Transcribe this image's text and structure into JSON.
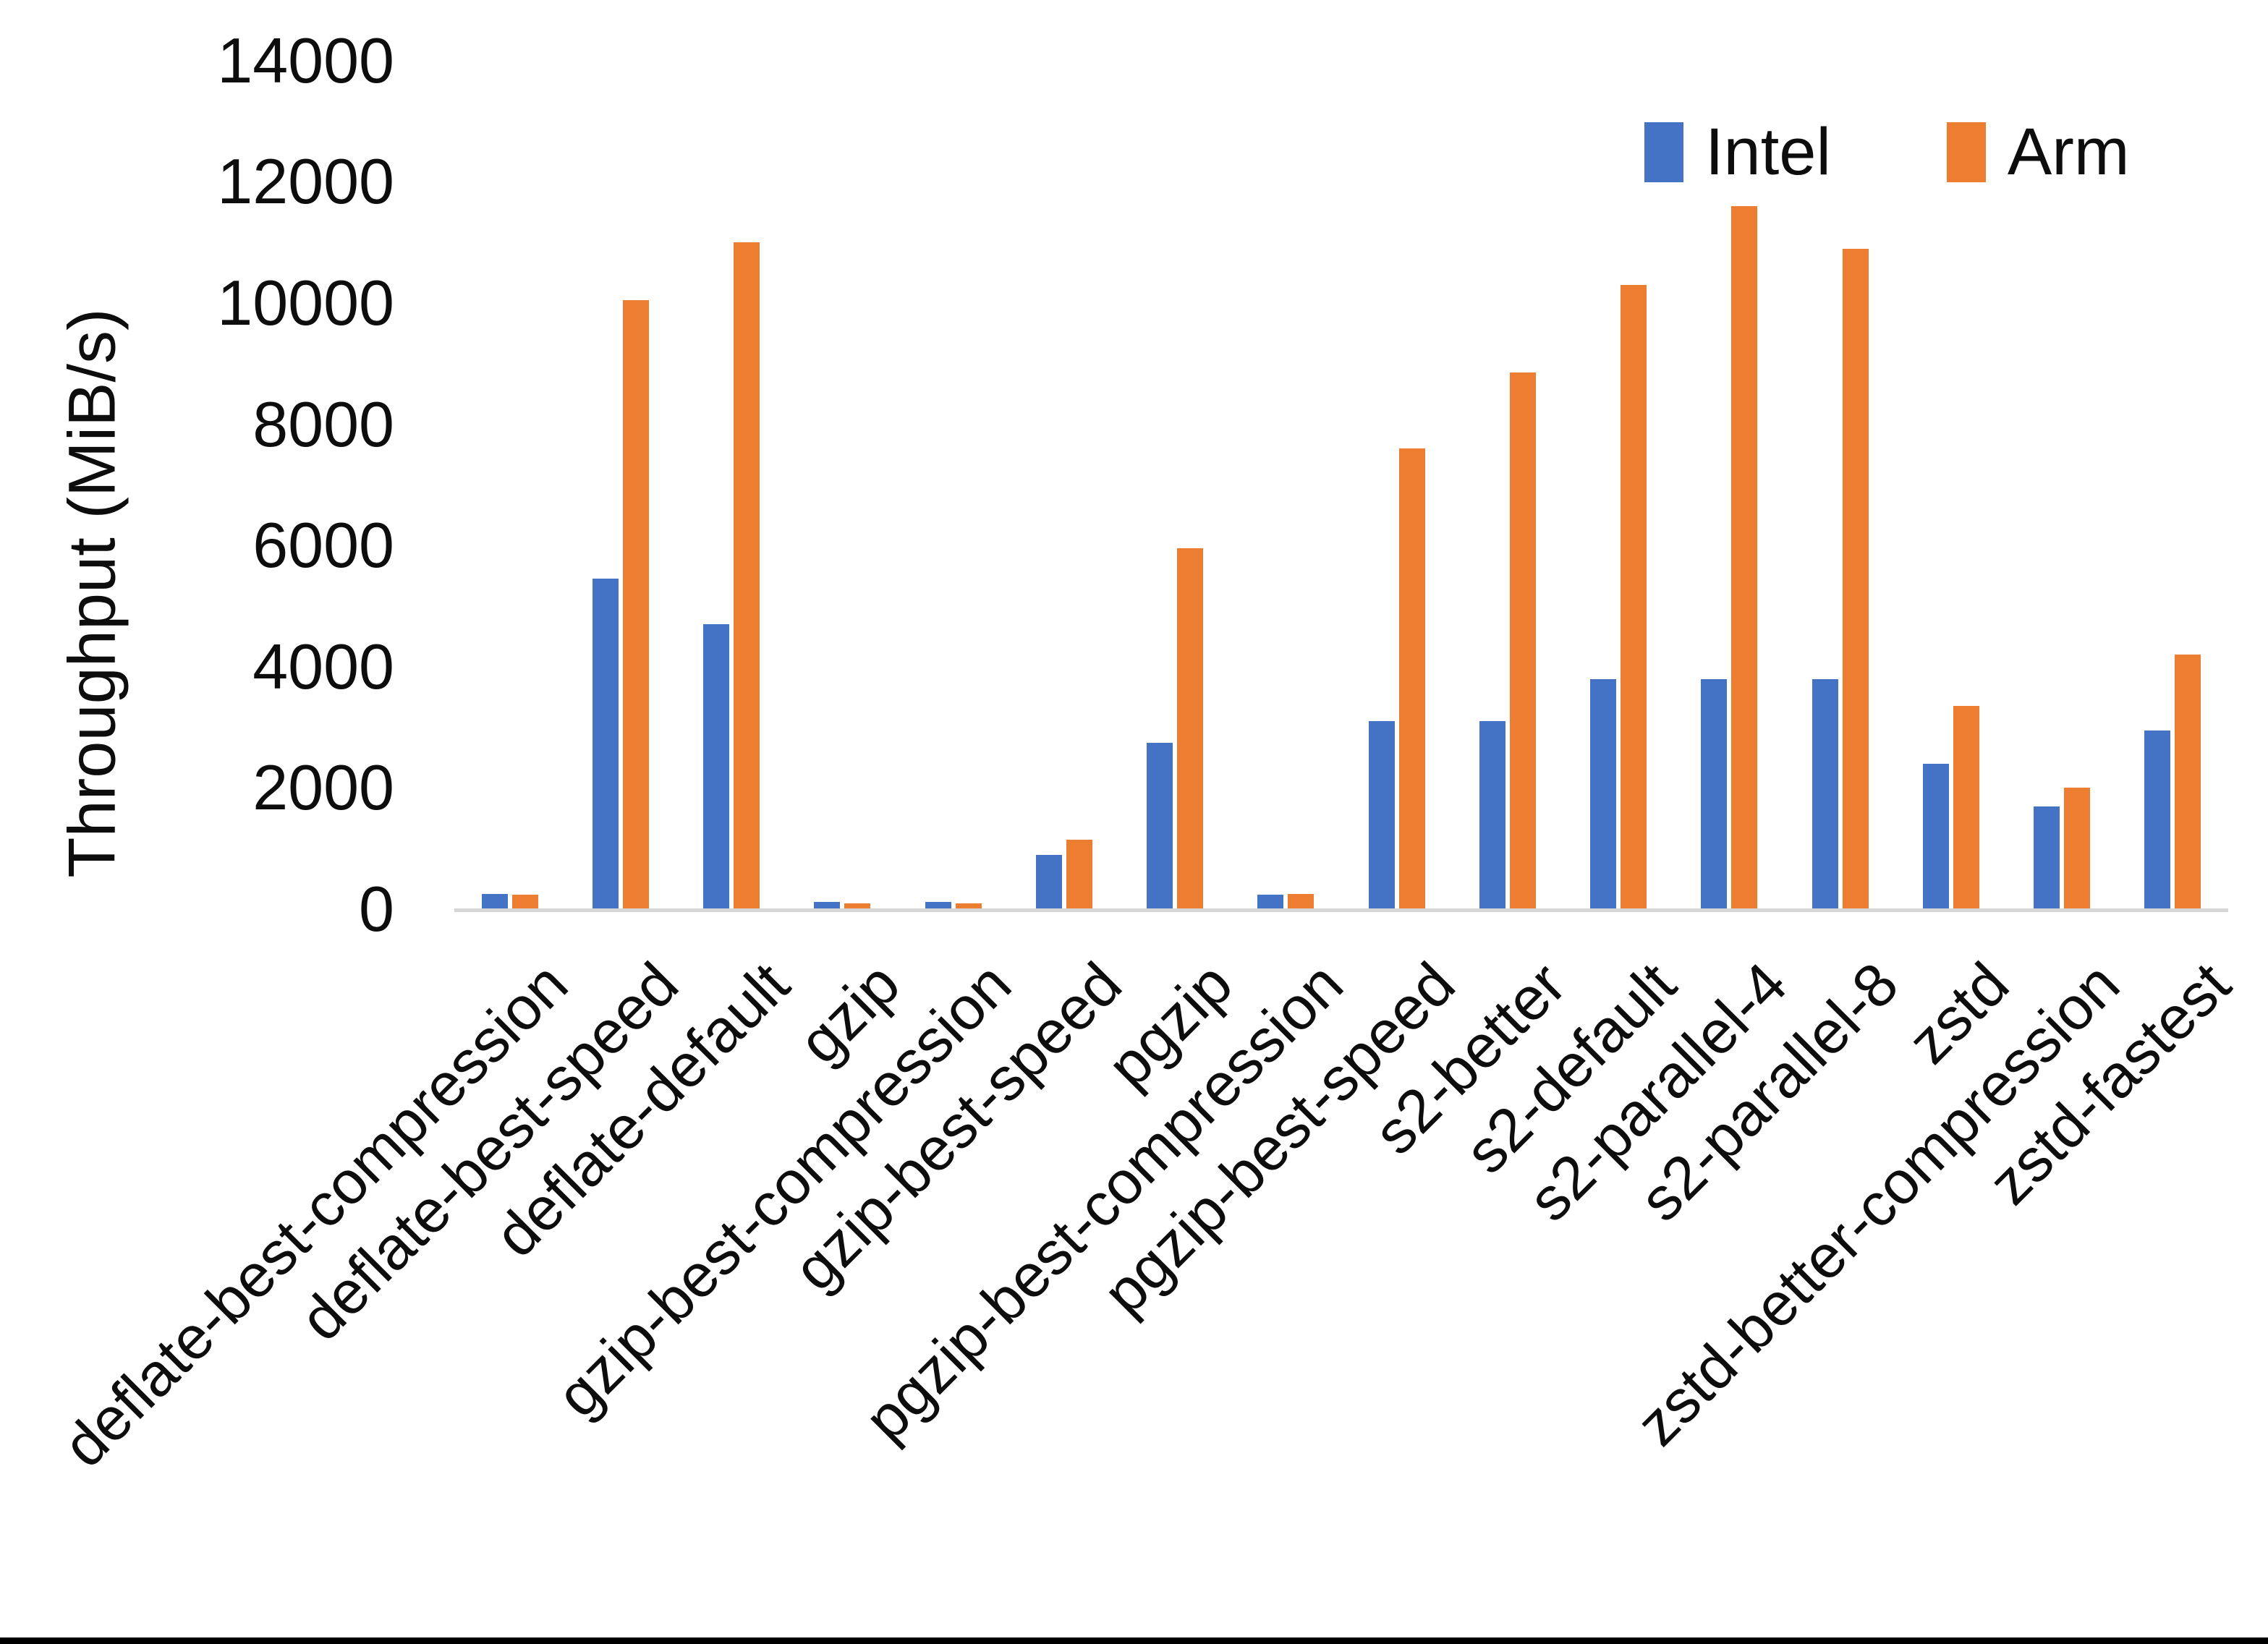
{
  "chart_data": {
    "type": "bar",
    "title": "",
    "xlabel": "",
    "ylabel": "Throughput (MiB/s)",
    "unit": "MiB/s",
    "ylim": [
      0,
      14000
    ],
    "yticks": [
      0,
      2000,
      4000,
      6000,
      8000,
      10000,
      12000,
      14000
    ],
    "grid": false,
    "legend_position": "top-right",
    "categories": [
      "deflate-best-compression",
      "deflate-best-speed",
      "deflate-default",
      "gzip",
      "gzip-best-compression",
      "gzip-best-speed",
      "pgzip",
      "pgzip-best-compression",
      "pgzip-best-speed",
      "s2-better",
      "s2-default",
      "s2-parallel-4",
      "s2-parallel-8",
      "zstd",
      "zstd-better-compression",
      "zstd-fastest"
    ],
    "series": [
      {
        "name": "Intel",
        "color": "#4472C4",
        "values": [
          250,
          5450,
          4700,
          120,
          120,
          900,
          2750,
          240,
          3100,
          3100,
          3800,
          3800,
          3800,
          2400,
          1700,
          2950
        ]
      },
      {
        "name": "Arm",
        "color": "#ED7D31",
        "values": [
          240,
          10050,
          11000,
          90,
          100,
          1150,
          5950,
          250,
          7600,
          8850,
          10300,
          11600,
          10900,
          3350,
          2000,
          4200
        ]
      }
    ]
  },
  "legend": {
    "items": [
      {
        "label": "Intel",
        "color": "#4472C4"
      },
      {
        "label": "Arm",
        "color": "#ED7D31"
      }
    ]
  },
  "border": {
    "bottom_color": "#000000"
  }
}
